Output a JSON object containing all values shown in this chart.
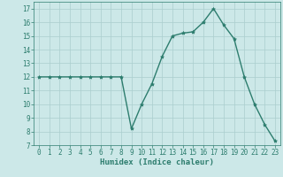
{
  "x": [
    0,
    1,
    2,
    3,
    4,
    5,
    6,
    7,
    8,
    9,
    10,
    11,
    12,
    13,
    14,
    15,
    16,
    17,
    18,
    19,
    20,
    21,
    22,
    23
  ],
  "y": [
    12,
    12,
    12,
    12,
    12,
    12,
    12,
    12,
    12,
    8.2,
    10,
    11.5,
    13.5,
    15,
    15.2,
    15.3,
    16,
    17,
    15.8,
    14.8,
    12,
    10,
    8.5,
    7.3
  ],
  "line_color": "#2d7d6e",
  "marker": "*",
  "marker_size": 3,
  "bg_color": "#cce8e8",
  "grid_color": "#aacece",
  "xlabel": "Humidex (Indice chaleur)",
  "ylim": [
    7,
    17.5
  ],
  "xlim": [
    -0.5,
    23.5
  ],
  "yticks": [
    7,
    8,
    9,
    10,
    11,
    12,
    13,
    14,
    15,
    16,
    17
  ],
  "xticks": [
    0,
    1,
    2,
    3,
    4,
    5,
    6,
    7,
    8,
    9,
    10,
    11,
    12,
    13,
    14,
    15,
    16,
    17,
    18,
    19,
    20,
    21,
    22,
    23
  ],
  "xlabel_fontsize": 6.5,
  "tick_fontsize": 5.5,
  "line_width": 1.0
}
